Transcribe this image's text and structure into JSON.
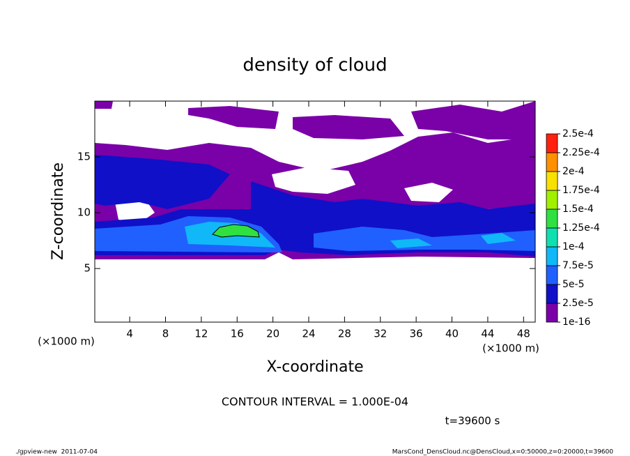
{
  "chart_data": {
    "type": "contour",
    "title": "density of cloud",
    "x_label": "X-coordinate",
    "y_label": "Z-coordinate",
    "x_unit": "(×1000 m)",
    "y_unit": "(×1000 m)",
    "contour_note": "CONTOUR INTERVAL = 1.000E-04",
    "time_label": "t=39600 s",
    "footer_left": "./gpview-new  2011-07-04",
    "footer_right": "MarsCond_DensCloud.nc@DensCloud,x=0:50000,z=0:20000,t=39600",
    "xlim": [
      0.1,
      49.3
    ],
    "ylim": [
      0.2,
      20
    ],
    "xticks": [
      4,
      8,
      12,
      16,
      20,
      24,
      28,
      32,
      36,
      40,
      44,
      48
    ],
    "yticks": [
      5,
      10,
      15
    ],
    "colorbar": {
      "levels": [
        {
          "value": 1e-16,
          "label": "1e-16"
        },
        {
          "value": 2.5e-05,
          "label": "2.5e-5"
        },
        {
          "value": 5e-05,
          "label": "5e-5"
        },
        {
          "value": 7.5e-05,
          "label": "7.5e-5"
        },
        {
          "value": 0.0001,
          "label": "1e-4"
        },
        {
          "value": 0.000125,
          "label": "1.25e-4"
        },
        {
          "value": 0.00015,
          "label": "1.5e-4"
        },
        {
          "value": 0.000175,
          "label": "1.75e-4"
        },
        {
          "value": 0.0002,
          "label": "2e-4"
        },
        {
          "value": 0.000225,
          "label": "2.25e-4"
        },
        {
          "value": 0.00025,
          "label": "2.5e-4"
        }
      ],
      "colors": [
        "#7a00a8",
        "#1010c8",
        "#2060ff",
        "#10b8f8",
        "#10e0b0",
        "#30e040",
        "#a0f000",
        "#f8e000",
        "#ff9000",
        "#ff2010"
      ]
    }
  }
}
